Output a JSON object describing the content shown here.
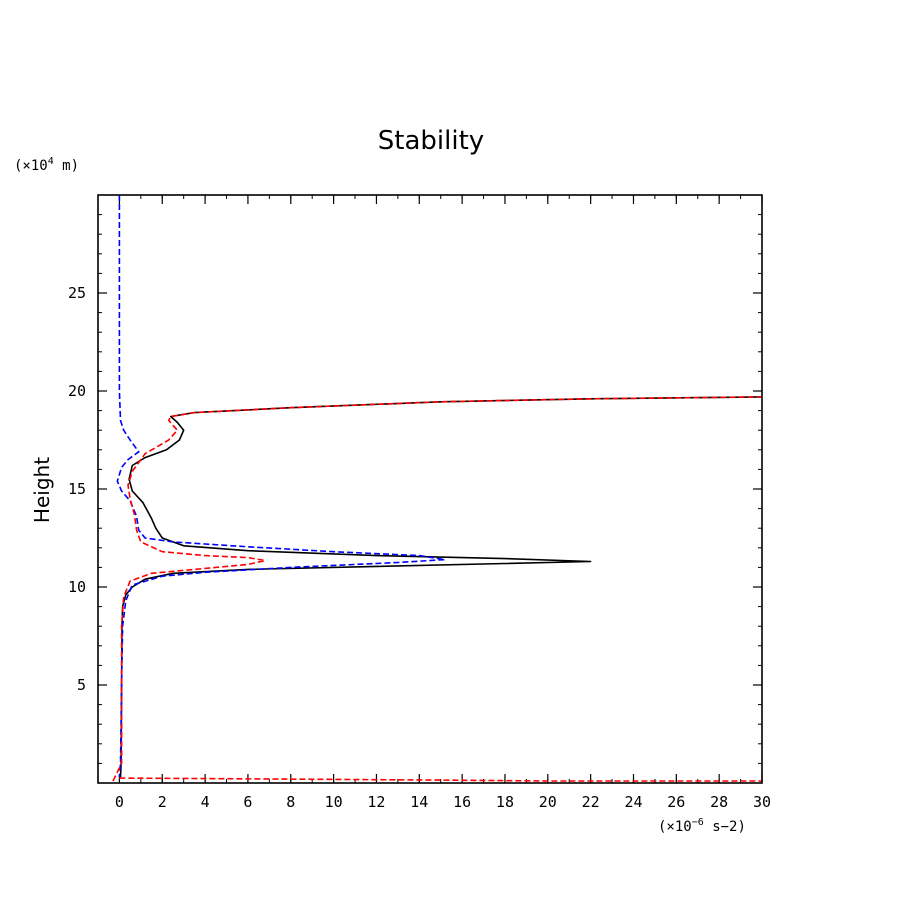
{
  "chart_data": {
    "type": "line",
    "title": "Stability",
    "ylabel": "Height",
    "y_unit": {
      "prefix": "(×10",
      "exp": "4",
      "suffix": " m)"
    },
    "x_unit": {
      "prefix": "(×10",
      "exp": "−6",
      "suffix": " s−2)"
    },
    "xlim": [
      -1,
      30
    ],
    "ylim": [
      0,
      30
    ],
    "xticks": [
      0,
      2,
      4,
      6,
      8,
      10,
      12,
      14,
      16,
      18,
      20,
      22,
      24,
      26,
      28,
      30
    ],
    "yticks": [
      5,
      10,
      15,
      20,
      25
    ],
    "grid": false,
    "legend": "none",
    "series": [
      {
        "color": "#000000",
        "dash": "solid",
        "points": [
          [
            0.05,
            0.3
          ],
          [
            0.08,
            1
          ],
          [
            0.1,
            5
          ],
          [
            0.12,
            8
          ],
          [
            0.15,
            9
          ],
          [
            0.3,
            9.6
          ],
          [
            0.6,
            10.0
          ],
          [
            1.2,
            10.4
          ],
          [
            2.5,
            10.7
          ],
          [
            6,
            10.9
          ],
          [
            12,
            11.05
          ],
          [
            18,
            11.2
          ],
          [
            22,
            11.3
          ],
          [
            18,
            11.45
          ],
          [
            12,
            11.6
          ],
          [
            6,
            11.85
          ],
          [
            3,
            12.1
          ],
          [
            2,
            12.5
          ],
          [
            1.7,
            13.0
          ],
          [
            1.5,
            13.5
          ],
          [
            1.1,
            14.3
          ],
          [
            0.6,
            14.9
          ],
          [
            0.45,
            15.5
          ],
          [
            0.6,
            16.2
          ],
          [
            1.2,
            16.6
          ],
          [
            2.2,
            17.0
          ],
          [
            2.8,
            17.5
          ],
          [
            3.0,
            18.0
          ],
          [
            2.7,
            18.4
          ],
          [
            2.4,
            18.7
          ],
          [
            3.5,
            18.9
          ],
          [
            8,
            19.15
          ],
          [
            15,
            19.45
          ],
          [
            22,
            19.6
          ],
          [
            30,
            19.7
          ]
        ]
      },
      {
        "color": "#0000ff",
        "dash": "dashed",
        "points": [
          [
            0.0,
            30
          ],
          [
            0.0,
            25
          ],
          [
            0.0,
            20
          ],
          [
            0.05,
            18.5
          ],
          [
            0.2,
            18.0
          ],
          [
            0.5,
            17.5
          ],
          [
            0.9,
            16.9
          ],
          [
            0.4,
            16.5
          ],
          [
            0.1,
            16.1
          ],
          [
            -0.1,
            15.4
          ],
          [
            0.1,
            14.9
          ],
          [
            0.5,
            14.4
          ],
          [
            0.8,
            13.6
          ],
          [
            0.9,
            12.9
          ],
          [
            1.2,
            12.5
          ],
          [
            2.5,
            12.3
          ],
          [
            6,
            12.05
          ],
          [
            10,
            11.8
          ],
          [
            14,
            11.6
          ],
          [
            15.2,
            11.4
          ],
          [
            13,
            11.25
          ],
          [
            8,
            11.0
          ],
          [
            4,
            10.75
          ],
          [
            2,
            10.55
          ],
          [
            0.6,
            10.1
          ],
          [
            0.3,
            9.3
          ],
          [
            0.15,
            8.0
          ],
          [
            0.1,
            5
          ],
          [
            0.05,
            1
          ],
          [
            0.0,
            0.3
          ]
        ]
      },
      {
        "color": "#ff0000",
        "dash": "dashed",
        "points": [
          [
            -0.3,
            0.1
          ],
          [
            0.1,
            1
          ],
          [
            0.1,
            5
          ],
          [
            0.1,
            8
          ],
          [
            0.2,
            9.5
          ],
          [
            0.5,
            10.3
          ],
          [
            1.5,
            10.7
          ],
          [
            4,
            10.95
          ],
          [
            6,
            11.15
          ],
          [
            6.8,
            11.35
          ],
          [
            6,
            11.5
          ],
          [
            4,
            11.6
          ],
          [
            2,
            11.8
          ],
          [
            1,
            12.3
          ],
          [
            0.8,
            12.9
          ],
          [
            0.7,
            13.7
          ],
          [
            0.5,
            14.5
          ],
          [
            0.4,
            15.2
          ],
          [
            0.6,
            15.9
          ],
          [
            1.2,
            16.8
          ],
          [
            2.3,
            17.5
          ],
          [
            2.7,
            18.0
          ],
          [
            2.3,
            18.5
          ],
          [
            2.4,
            18.7
          ],
          [
            3.5,
            18.9
          ],
          [
            8,
            19.15
          ],
          [
            15,
            19.45
          ],
          [
            22,
            19.6
          ],
          [
            30,
            19.7
          ]
        ]
      },
      {
        "color": "#ff0000",
        "dash": "dashed",
        "points": [
          [
            0.0,
            0.25
          ],
          [
            5,
            0.22
          ],
          [
            15,
            0.15
          ],
          [
            20,
            0.1
          ],
          [
            30,
            0.1
          ]
        ]
      }
    ]
  }
}
